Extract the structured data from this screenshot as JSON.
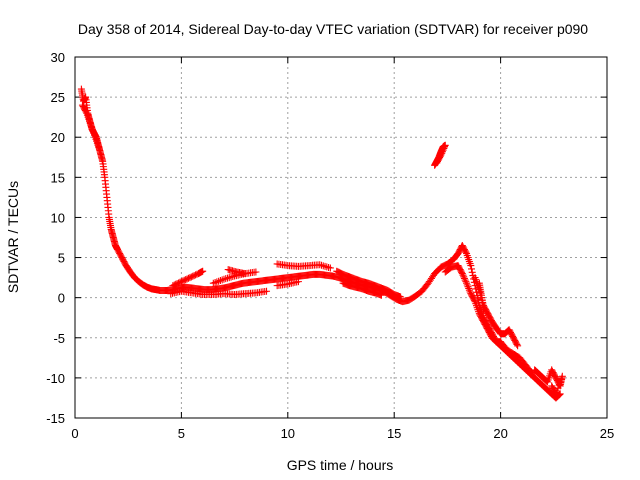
{
  "chart_data": {
    "type": "scatter",
    "title": "Day 358 of 2014, Sidereal Day-to-day VTEC variation (SDTVAR) for receiver p090",
    "xlabel": "GPS time / hours",
    "ylabel": "SDTVAR / TECUs",
    "xlim": [
      0,
      25
    ],
    "ylim": [
      -15,
      30
    ],
    "xticks": [
      "0",
      "5",
      "10",
      "15",
      "20",
      "25"
    ],
    "yticks": [
      "-15",
      "-10",
      "-5",
      "0",
      "5",
      "10",
      "15",
      "20",
      "25",
      "30"
    ],
    "grid": true,
    "marker": "plus",
    "color": "#ff0000",
    "series": [
      {
        "name": "SDTVAR",
        "segments": [
          [
            [
              0.3,
              26
            ],
            [
              0.4,
              24.5
            ],
            [
              0.5,
              25
            ],
            [
              0.6,
              23
            ],
            [
              0.7,
              22
            ],
            [
              0.8,
              21
            ],
            [
              0.9,
              20.5
            ],
            [
              1.0,
              20
            ],
            [
              1.1,
              19
            ],
            [
              1.2,
              18
            ],
            [
              1.3,
              17
            ],
            [
              1.4,
              15
            ],
            [
              1.5,
              12.5
            ],
            [
              1.6,
              10
            ],
            [
              1.7,
              8.5
            ],
            [
              1.8,
              7.5
            ],
            [
              1.9,
              6.5
            ],
            [
              2.0,
              6
            ],
            [
              2.2,
              5
            ],
            [
              2.4,
              4
            ],
            [
              2.6,
              3.2
            ],
            [
              2.8,
              2.5
            ],
            [
              3.0,
              2
            ],
            [
              3.2,
              1.6
            ],
            [
              3.4,
              1.3
            ],
            [
              3.6,
              1.1
            ],
            [
              3.8,
              1.0
            ],
            [
              4.0,
              0.9
            ],
            [
              4.3,
              0.9
            ],
            [
              4.6,
              1.0
            ],
            [
              4.9,
              1.2
            ],
            [
              5.2,
              1.3
            ],
            [
              5.5,
              1.2
            ],
            [
              5.8,
              1.1
            ],
            [
              6.1,
              1.0
            ],
            [
              6.4,
              1.0
            ],
            [
              6.7,
              1.1
            ],
            [
              7.0,
              1.2
            ],
            [
              7.3,
              1.4
            ],
            [
              7.6,
              1.6
            ],
            [
              7.9,
              1.8
            ],
            [
              8.2,
              1.9
            ],
            [
              8.5,
              2.0
            ],
            [
              8.8,
              2.1
            ],
            [
              9.1,
              2.2
            ],
            [
              9.4,
              2.3
            ],
            [
              9.7,
              2.4
            ],
            [
              10.0,
              2.5
            ],
            [
              10.3,
              2.6
            ],
            [
              10.6,
              2.7
            ],
            [
              10.9,
              2.8
            ],
            [
              11.2,
              2.9
            ],
            [
              11.5,
              2.9
            ],
            [
              11.8,
              2.8
            ],
            [
              12.1,
              2.7
            ],
            [
              12.4,
              2.5
            ],
            [
              12.7,
              2.2
            ],
            [
              13.0,
              1.9
            ],
            [
              13.3,
              1.7
            ],
            [
              13.6,
              1.5
            ],
            [
              13.9,
              1.3
            ],
            [
              14.2,
              1.1
            ],
            [
              14.5,
              0.8
            ],
            [
              14.8,
              0.3
            ],
            [
              15.1,
              -0.2
            ],
            [
              15.4,
              -0.5
            ],
            [
              15.7,
              -0.3
            ],
            [
              16.0,
              0.2
            ],
            [
              16.3,
              0.8
            ],
            [
              16.6,
              1.8
            ],
            [
              16.9,
              3.0
            ],
            [
              17.2,
              3.8
            ],
            [
              17.5,
              4.2
            ],
            [
              17.8,
              4.8
            ],
            [
              18.0,
              5.5
            ],
            [
              18.2,
              6.5
            ],
            [
              18.4,
              5.5
            ],
            [
              18.6,
              4.0
            ],
            [
              18.8,
              1.5
            ],
            [
              19.0,
              -1.0
            ],
            [
              19.2,
              -2.5
            ],
            [
              19.4,
              -3.5
            ],
            [
              19.6,
              -4.5
            ],
            [
              19.8,
              -5.5
            ],
            [
              20.0,
              -6.0
            ],
            [
              20.2,
              -6.5
            ],
            [
              20.4,
              -7.0
            ],
            [
              20.6,
              -7.5
            ],
            [
              20.8,
              -8.0
            ],
            [
              21.0,
              -8.5
            ],
            [
              21.2,
              -9.0
            ],
            [
              21.4,
              -9.5
            ],
            [
              21.6,
              -10.0
            ],
            [
              21.8,
              -10.5
            ],
            [
              22.0,
              -11.0
            ],
            [
              22.2,
              -11.5
            ],
            [
              22.4,
              -12.0
            ],
            [
              22.6,
              -12.5
            ],
            [
              22.8,
              -12.0
            ]
          ],
          [
            [
              0.35,
              24
            ],
            [
              0.55,
              23
            ],
            [
              0.75,
              21.5
            ],
            [
              0.95,
              20
            ],
            [
              1.15,
              18.5
            ]
          ],
          [
            [
              4.5,
              0.5
            ],
            [
              5.0,
              0.8
            ],
            [
              5.5,
              0.6
            ],
            [
              6.0,
              0.4
            ],
            [
              6.5,
              0.4
            ],
            [
              7.0,
              0.5
            ],
            [
              7.5,
              0.4
            ],
            [
              8.0,
              0.5
            ],
            [
              8.5,
              0.6
            ],
            [
              9.0,
              0.8
            ]
          ],
          [
            [
              4.6,
              1.5
            ],
            [
              5.0,
              2.0
            ],
            [
              5.4,
              2.5
            ],
            [
              5.8,
              3.0
            ],
            [
              6.0,
              3.3
            ]
          ],
          [
            [
              6.5,
              1.8
            ],
            [
              7.0,
              2.3
            ],
            [
              7.5,
              2.7
            ],
            [
              8.0,
              3.0
            ],
            [
              8.5,
              3.2
            ]
          ],
          [
            [
              7.2,
              3.5
            ],
            [
              7.6,
              3.2
            ],
            [
              8.0,
              3.0
            ]
          ],
          [
            [
              9.5,
              4.2
            ],
            [
              10.0,
              4.0
            ],
            [
              10.5,
              3.9
            ],
            [
              11.0,
              4.0
            ],
            [
              11.5,
              4.1
            ],
            [
              12.0,
              3.7
            ]
          ],
          [
            [
              9.5,
              1.5
            ],
            [
              10.0,
              1.7
            ],
            [
              10.5,
              2.0
            ]
          ],
          [
            [
              12.3,
              3.3
            ],
            [
              12.6,
              2.9
            ],
            [
              12.9,
              2.6
            ],
            [
              13.2,
              2.3
            ],
            [
              13.5,
              2.0
            ],
            [
              13.8,
              1.8
            ],
            [
              14.1,
              1.5
            ],
            [
              14.4,
              1.2
            ],
            [
              14.7,
              0.9
            ],
            [
              15.0,
              0.4
            ],
            [
              15.3,
              0.1
            ]
          ],
          [
            [
              12.6,
              1.8
            ],
            [
              12.9,
              1.5
            ],
            [
              13.2,
              1.3
            ],
            [
              13.5,
              1.1
            ],
            [
              13.8,
              0.8
            ],
            [
              14.1,
              0.6
            ],
            [
              14.4,
              0.3
            ]
          ],
          [
            [
              17.4,
              3.2
            ],
            [
              17.7,
              3.8
            ],
            [
              18.0,
              4.0
            ],
            [
              18.2,
              3.0
            ],
            [
              18.4,
              1.8
            ],
            [
              18.6,
              0.5
            ],
            [
              18.8,
              -0.5
            ],
            [
              19.0,
              -2.0
            ],
            [
              19.2,
              -3.0
            ],
            [
              19.4,
              -4.0
            ],
            [
              19.6,
              -5.0
            ],
            [
              19.8,
              -5.5
            ],
            [
              20.0,
              -5.5
            ],
            [
              20.3,
              -6.5
            ],
            [
              20.6,
              -7.0
            ],
            [
              20.9,
              -7.5
            ],
            [
              21.2,
              -8.5
            ],
            [
              21.5,
              -9.5
            ]
          ],
          [
            [
              18.8,
              2.5
            ],
            [
              19.0,
              1.0
            ],
            [
              19.2,
              -1.0
            ],
            [
              19.4,
              -2.0
            ],
            [
              19.6,
              -3.0
            ],
            [
              19.8,
              -3.8
            ],
            [
              20.0,
              -4.5
            ],
            [
              20.2,
              -4.5
            ],
            [
              20.4,
              -4.0
            ],
            [
              20.6,
              -5.0
            ],
            [
              20.8,
              -6.0
            ]
          ],
          [
            [
              21.6,
              -9.0
            ],
            [
              21.8,
              -9.5
            ],
            [
              22.0,
              -10.0
            ],
            [
              22.2,
              -10.5
            ],
            [
              22.4,
              -9.0
            ],
            [
              22.6,
              -10.0
            ],
            [
              22.8,
              -11.0
            ],
            [
              22.9,
              -9.8
            ],
            [
              22.6,
              -12.0
            ],
            [
              22.4,
              -11.0
            ]
          ],
          [
            [
              19.0,
              1.8
            ],
            [
              19.1,
              0.3
            ],
            [
              19.2,
              -1.5
            ]
          ],
          [
            [
              16.9,
              16.5
            ],
            [
              17.0,
              17.0
            ],
            [
              17.1,
              17.5
            ],
            [
              17.2,
              18.2
            ],
            [
              17.3,
              18.8
            ],
            [
              17.4,
              19.0
            ],
            [
              17.2,
              17.8
            ],
            [
              17.0,
              16.8
            ]
          ]
        ]
      }
    ]
  }
}
